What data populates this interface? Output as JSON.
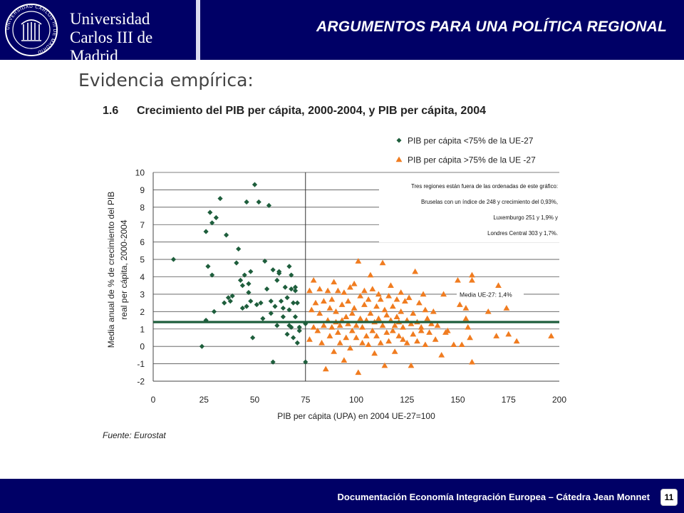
{
  "header": {
    "university_line1": "Universidad",
    "university_line2": "Carlos III de Madrid",
    "seal_text": "UNIVERSIDAD CARLOS III DE MADRID",
    "title": "ARGUMENTOS PARA UNA POLÍTICA REGIONAL"
  },
  "section_title": "Evidencia empírica:",
  "figure": {
    "number": "1.6",
    "title": "Crecimiento del PIB per cápita, 2000-2004, y PIB per cápita, 2004"
  },
  "source": "Fuente:  Eurostat",
  "footer": {
    "text": "Documentación Economía Integración Europea – Cátedra Jean Monnet",
    "page": "11"
  },
  "chart_data": {
    "type": "scatter",
    "xlabel": "PIB per cápita (UPA) en 2004 UE-27=100",
    "ylabel": [
      "Media anual  de % de crecimiento del PIB",
      "real per cápita, 2000-2004"
    ],
    "xlim": [
      0,
      200
    ],
    "ylim": [
      -2,
      10
    ],
    "x_ticks": [
      0,
      25,
      50,
      75,
      100,
      125,
      150,
      175,
      200
    ],
    "y_ticks": [
      -2,
      -1,
      0,
      1,
      2,
      3,
      4,
      5,
      6,
      7,
      8,
      9,
      10
    ],
    "grid": "horizontal",
    "legend_position": "top-right",
    "colors": {
      "low": "#1e5e3c",
      "high": "#f07c20",
      "mean_line": "#1e5e3c"
    },
    "reference_lines": {
      "vertical_x": 75,
      "horizontal_y": 1.4
    },
    "annotations": {
      "note": [
        "Tres regiones están fuera de las ordenadas de este gráfico:",
        "Bruselas con un índice de 248 y crecimiento del 0,93%,",
        "Luxemburgo 251 y 1,9% y",
        "Londres Central 303 y 1,7%."
      ],
      "mean_label": "Media UE-27: 1,4%"
    },
    "series": [
      {
        "name": "PIB per cápita <75% de la UE-27",
        "marker": "diamond",
        "points": [
          [
            10,
            5
          ],
          [
            24,
            0
          ],
          [
            26,
            1.5
          ],
          [
            26,
            6.6
          ],
          [
            27,
            4.6
          ],
          [
            28,
            7.7
          ],
          [
            29,
            4.1
          ],
          [
            29,
            7.1
          ],
          [
            30,
            2
          ],
          [
            31,
            7.4
          ],
          [
            33,
            8.5
          ],
          [
            35,
            2.5
          ],
          [
            36,
            6.4
          ],
          [
            37,
            2.8
          ],
          [
            38,
            2.6
          ],
          [
            39,
            2.9
          ],
          [
            41,
            4.8
          ],
          [
            42,
            5.6
          ],
          [
            43,
            3.8
          ],
          [
            44,
            3.5
          ],
          [
            44,
            2.2
          ],
          [
            45,
            4.1
          ],
          [
            46,
            2.3
          ],
          [
            46,
            8.3
          ],
          [
            47,
            3.1
          ],
          [
            47,
            3.6
          ],
          [
            48,
            4.3
          ],
          [
            48,
            2.6
          ],
          [
            49,
            0.5
          ],
          [
            50,
            9.3
          ],
          [
            51,
            2.4
          ],
          [
            52,
            8.3
          ],
          [
            53,
            2.5
          ],
          [
            54,
            1.6
          ],
          [
            55,
            4.9
          ],
          [
            56,
            3.3
          ],
          [
            57,
            8.1
          ],
          [
            58,
            1.9
          ],
          [
            58,
            2.6
          ],
          [
            59,
            4.4
          ],
          [
            59,
            -0.9
          ],
          [
            60,
            2.3
          ],
          [
            61,
            1.2
          ],
          [
            61,
            3.8
          ],
          [
            62,
            4.2
          ],
          [
            62,
            4.3
          ],
          [
            63,
            2.6
          ],
          [
            64,
            1.7
          ],
          [
            64,
            2.2
          ],
          [
            65,
            3.4
          ],
          [
            66,
            0.7
          ],
          [
            66,
            2.8
          ],
          [
            67,
            2.1
          ],
          [
            67,
            4.6
          ],
          [
            67,
            1.2
          ],
          [
            68,
            1.1
          ],
          [
            68,
            4.1
          ],
          [
            68,
            3.3
          ],
          [
            69,
            2.5
          ],
          [
            69,
            0.5
          ],
          [
            70,
            1.7
          ],
          [
            70,
            3.4
          ],
          [
            70,
            3.2
          ],
          [
            71,
            2.5
          ],
          [
            71,
            0.2
          ],
          [
            72,
            1.1
          ],
          [
            72,
            0.9
          ],
          [
            75,
            1.3
          ],
          [
            75,
            -0.9
          ]
        ]
      },
      {
        "name": "PIB per cápita >75% de la UE -27",
        "marker": "triangle",
        "points": [
          [
            77,
            3.2
          ],
          [
            77,
            0.4
          ],
          [
            78,
            2.1
          ],
          [
            79,
            3.8
          ],
          [
            79,
            1.1
          ],
          [
            80,
            2.5
          ],
          [
            81,
            0.9
          ],
          [
            82,
            3.3
          ],
          [
            82,
            1.9
          ],
          [
            83,
            0.2
          ],
          [
            84,
            2.6
          ],
          [
            84,
            1.2
          ],
          [
            85,
            -1.3
          ],
          [
            86,
            3.2
          ],
          [
            86,
            1.5
          ],
          [
            87,
            2.2
          ],
          [
            87,
            0.6
          ],
          [
            88,
            1.1
          ],
          [
            88,
            2.7
          ],
          [
            89,
            3.7
          ],
          [
            89,
            -0.3
          ],
          [
            90,
            1.4
          ],
          [
            90,
            2
          ],
          [
            91,
            0.8
          ],
          [
            91,
            3.2
          ],
          [
            92,
            1.2
          ],
          [
            92,
            0.2
          ],
          [
            93,
            2.4
          ],
          [
            93,
            1.5
          ],
          [
            94,
            3.1
          ],
          [
            94,
            -0.8
          ],
          [
            95,
            1.7
          ],
          [
            95,
            0.5
          ],
          [
            96,
            2.6
          ],
          [
            96,
            1.3
          ],
          [
            97,
            3.4
          ],
          [
            97,
            -0.1
          ],
          [
            98,
            1.9
          ],
          [
            98,
            0.9
          ],
          [
            99,
            3.6
          ],
          [
            99,
            2.2
          ],
          [
            100,
            1.2
          ],
          [
            100,
            0.5
          ],
          [
            101,
            4.9
          ],
          [
            101,
            -1.5
          ],
          [
            102,
            1.6
          ],
          [
            102,
            2.9
          ],
          [
            103,
            0.2
          ],
          [
            103,
            1.1
          ],
          [
            104,
            2.4
          ],
          [
            104,
            3.2
          ],
          [
            105,
            0.6
          ],
          [
            105,
            1.5
          ],
          [
            106,
            2.7
          ],
          [
            106,
            0.1
          ],
          [
            107,
            1.9
          ],
          [
            107,
            4.1
          ],
          [
            108,
            0.9
          ],
          [
            108,
            3.3
          ],
          [
            109,
            1.4
          ],
          [
            109,
            -0.4
          ],
          [
            110,
            2.3
          ],
          [
            110,
            0.6
          ],
          [
            111,
            1.6
          ],
          [
            111,
            3
          ],
          [
            112,
            0.2
          ],
          [
            112,
            2.7
          ],
          [
            113,
            4.8
          ],
          [
            113,
            1.2
          ],
          [
            114,
            -1.1
          ],
          [
            114,
            2.1
          ],
          [
            115,
            0.8
          ],
          [
            115,
            1.8
          ],
          [
            116,
            2.9
          ],
          [
            116,
            0.3
          ],
          [
            117,
            1.5
          ],
          [
            117,
            3.5
          ],
          [
            118,
            0.9
          ],
          [
            118,
            2.3
          ],
          [
            119,
            1.2
          ],
          [
            119,
            -0.3
          ],
          [
            120,
            2.7
          ],
          [
            120,
            1.7
          ],
          [
            121,
            0.6
          ],
          [
            121,
            1.4
          ],
          [
            122,
            3.1
          ],
          [
            122,
            2
          ],
          [
            123,
            0.4
          ],
          [
            123,
            1.1
          ],
          [
            124,
            2.6
          ],
          [
            125,
            0.2
          ],
          [
            125,
            1.5
          ],
          [
            126,
            2.8
          ],
          [
            127,
            -1.1
          ],
          [
            127,
            1.3
          ],
          [
            128,
            0.7
          ],
          [
            128,
            1.9
          ],
          [
            129,
            4.3
          ],
          [
            130,
            0.3
          ],
          [
            130,
            1.4
          ],
          [
            131,
            2.5
          ],
          [
            132,
            0.9
          ],
          [
            132,
            1.1
          ],
          [
            133,
            3
          ],
          [
            134,
            0.1
          ],
          [
            134,
            2.1
          ],
          [
            135,
            1.6
          ],
          [
            136,
            0.8
          ],
          [
            137,
            1.3
          ],
          [
            138,
            2
          ],
          [
            139,
            0.4
          ],
          [
            140,
            1.2
          ],
          [
            142,
            -0.5
          ],
          [
            143,
            3
          ],
          [
            144,
            0.8
          ],
          [
            145,
            0.9
          ],
          [
            148,
            0.1
          ],
          [
            150,
            3.8
          ],
          [
            151,
            2.4
          ],
          [
            152,
            0.1
          ],
          [
            154,
            2.2
          ],
          [
            154,
            1.6
          ],
          [
            155,
            1.1
          ],
          [
            156,
            0.5
          ],
          [
            157,
            4.1
          ],
          [
            157,
            3.8
          ],
          [
            157,
            -0.9
          ],
          [
            165,
            2
          ],
          [
            169,
            0.6
          ],
          [
            170,
            3.5
          ],
          [
            174,
            2.2
          ],
          [
            175,
            0.7
          ],
          [
            179,
            0.3
          ],
          [
            196,
            0.6
          ]
        ]
      }
    ]
  }
}
